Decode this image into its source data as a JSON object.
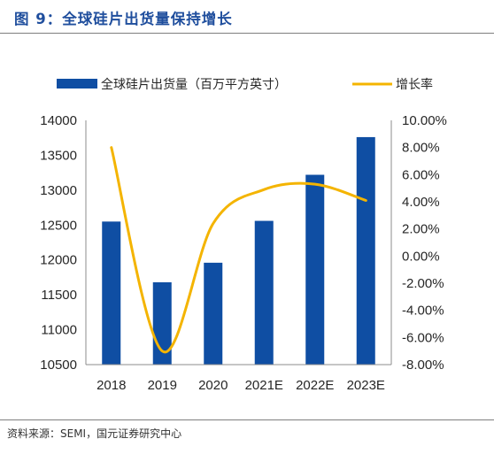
{
  "figure": {
    "title": "图 9：全球硅片出货量保持增长",
    "source": "资料来源：SEMI，国元证券研究中心"
  },
  "colors": {
    "bar": "#0f4ea3",
    "line": "#f4b400",
    "title": "#1f4e9d"
  },
  "chart_data": {
    "type": "bar",
    "categories": [
      "2018",
      "2019",
      "2020",
      "2021E",
      "2022E",
      "2023E"
    ],
    "series": [
      {
        "name": "全球硅片出货量（百万平方英寸）",
        "type": "bar",
        "axis": "left",
        "values": [
          12550,
          11680,
          11960,
          12560,
          13220,
          13760
        ]
      },
      {
        "name": "增长率",
        "type": "line",
        "axis": "right",
        "values": [
          8.0,
          -7.0,
          2.4,
          4.9,
          5.3,
          4.1
        ]
      }
    ],
    "y_left": {
      "ylim": [
        10500,
        14000
      ],
      "ticks": [
        "14000",
        "13500",
        "13000",
        "12500",
        "12000",
        "11500",
        "11000",
        "10500"
      ]
    },
    "y_right": {
      "ylim": [
        -8,
        10
      ],
      "ticks": [
        "10.00%",
        "8.00%",
        "6.00%",
        "4.00%",
        "2.00%",
        "0.00%",
        "-2.00%",
        "-4.00%",
        "-6.00%",
        "-8.00%"
      ]
    },
    "legend": "top",
    "grid": false
  }
}
